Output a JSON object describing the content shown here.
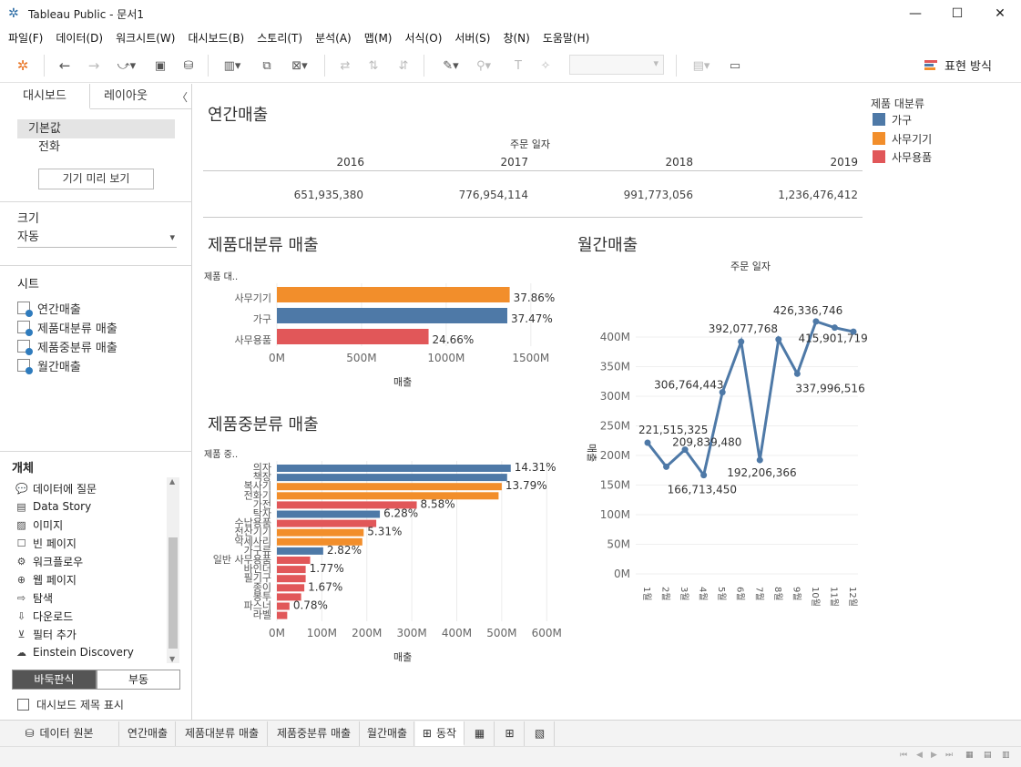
{
  "window": {
    "title": "Tableau Public - 문서1",
    "minimize": "—",
    "maximize": "☐",
    "close": "✕"
  },
  "menu": [
    "파일(F)",
    "데이터(D)",
    "워크시트(W)",
    "대시보드(B)",
    "스토리(T)",
    "분석(A)",
    "맵(M)",
    "서식(O)",
    "서버(S)",
    "창(N)",
    "도움말(H)"
  ],
  "toolbar": {
    "show_me": "표현 방식"
  },
  "left": {
    "tabs": [
      "대시보드",
      "레이아웃"
    ],
    "device_default": "기본값",
    "device_phone": "전화",
    "preview_button": "기기 미리 보기",
    "size_title": "크기",
    "size_value": "자동",
    "sheets_title": "시트",
    "sheets": [
      "연간매출",
      "제품대분류 매출",
      "제품중분류 매출",
      "월간매출"
    ],
    "objects_title": "개체",
    "objects": [
      {
        "icon": "ask-data-icon",
        "label": "데이터에 질문"
      },
      {
        "icon": "data-story-icon",
        "label": "Data Story"
      },
      {
        "icon": "image-icon",
        "label": "이미지"
      },
      {
        "icon": "blank-page-icon",
        "label": "빈 페이지"
      },
      {
        "icon": "workflow-icon",
        "label": "워크플로우"
      },
      {
        "icon": "web-page-icon",
        "label": "웹 페이지"
      },
      {
        "icon": "navigation-icon",
        "label": "탐색"
      },
      {
        "icon": "download-icon",
        "label": "다운로드"
      },
      {
        "icon": "add-filter-icon",
        "label": "필터 추가"
      },
      {
        "icon": "einstein-icon",
        "label": "Einstein Discovery"
      }
    ],
    "tiled": "바둑판식",
    "floating": "부동",
    "show_title": "대시보드 제목 표시"
  },
  "dashboard": {
    "annual": {
      "title": "연간매출",
      "header": "주문 일자",
      "years": [
        "2016",
        "2017",
        "2018",
        "2019"
      ],
      "values": [
        "651,935,380",
        "776,954,114",
        "991,773,056",
        "1,236,476,412"
      ]
    },
    "legend": {
      "title": "제품 대분류",
      "items": [
        {
          "label": "가구",
          "color": "#4e79a7"
        },
        {
          "label": "사무기기",
          "color": "#f28e2b"
        },
        {
          "label": "사무용품",
          "color": "#e15759"
        }
      ]
    },
    "category_title": "제품대분류 매출",
    "category_field": "제품 대..",
    "subcat_title": "제품중분류 매출",
    "subcat_field": "제품 중..",
    "monthly_title": "월간매출",
    "measure_label": "매출",
    "date_label": "주문 일자"
  },
  "chart_data": [
    {
      "type": "bar",
      "title": "제품대분류 매출",
      "categories": [
        "사무기기",
        "가구",
        "사무용품"
      ],
      "values": [
        1375,
        1361,
        896
      ],
      "labels": [
        "37.86%",
        "37.47%",
        "24.66%"
      ],
      "colors": [
        "#f28e2b",
        "#4e79a7",
        "#e15759"
      ],
      "xlabel": "매출",
      "xlim": [
        0,
        1700
      ],
      "ticks": [
        0,
        500,
        1000,
        1500
      ],
      "tick_labels": [
        "0M",
        "500M",
        "1000M",
        "1500M"
      ]
    },
    {
      "type": "bar",
      "title": "제품중분류 매출",
      "categories": [
        "의자",
        "책장",
        "복사기",
        "전화기",
        "가전",
        "탁자",
        "수납용품",
        "전산기기",
        "악세사리",
        "가구류",
        "일반 사무용품",
        "바인더",
        "필기구",
        "종이",
        "봉투",
        "파스너",
        "라벨"
      ],
      "values": [
        520,
        512,
        500,
        493,
        311,
        229,
        221,
        193,
        190,
        103,
        74,
        64,
        64,
        61,
        54,
        28,
        23
      ],
      "labels": [
        "14.31%",
        "",
        "13.79%",
        "",
        "8.58%",
        "6.28%",
        "",
        "5.31%",
        "",
        "2.82%",
        "",
        "1.77%",
        "",
        "1.67%",
        "",
        "0.78%",
        ""
      ],
      "colors": [
        "#4e79a7",
        "#4e79a7",
        "#f28e2b",
        "#f28e2b",
        "#e15759",
        "#4e79a7",
        "#e15759",
        "#f28e2b",
        "#f28e2b",
        "#4e79a7",
        "#e15759",
        "#e15759",
        "#e15759",
        "#e15759",
        "#e15759",
        "#e15759",
        "#e15759"
      ],
      "xlabel": "매출",
      "xlim": [
        0,
        640
      ],
      "ticks": [
        0,
        100,
        200,
        300,
        400,
        500,
        600
      ],
      "tick_labels": [
        "0M",
        "100M",
        "200M",
        "300M",
        "400M",
        "500M",
        "600M"
      ]
    },
    {
      "type": "line",
      "title": "월간매출",
      "x": [
        "1월",
        "2월",
        "3월",
        "4월",
        "5월",
        "6월",
        "7월",
        "8월",
        "9월",
        "10월",
        "11월",
        "12월"
      ],
      "values": [
        221515325,
        181000000,
        209839480,
        166713450,
        306764443,
        392077768,
        192206366,
        396000000,
        337996516,
        426336746,
        415901719,
        409000000
      ],
      "labels": [
        "221,515,325",
        "",
        "209,839,480",
        "166,713,450",
        "306,764,443",
        "392,077,768",
        "192,206,366",
        "",
        "337,996,516",
        "426,336,746",
        "415,901,719",
        ""
      ],
      "ylabel": "매출",
      "ylim": [
        0,
        440000000
      ],
      "ticks": [
        0,
        50000000,
        100000000,
        150000000,
        200000000,
        250000000,
        300000000,
        350000000,
        400000000
      ],
      "tick_labels": [
        "0M",
        "50M",
        "100M",
        "150M",
        "200M",
        "250M",
        "300M",
        "350M",
        "400M"
      ],
      "color": "#4e79a7"
    }
  ],
  "bottom": {
    "data_source": "데이터 원본",
    "tabs": [
      "연간매출",
      "제품대분류 매출",
      "제품중분류 매출",
      "월간매출",
      "동작"
    ]
  }
}
